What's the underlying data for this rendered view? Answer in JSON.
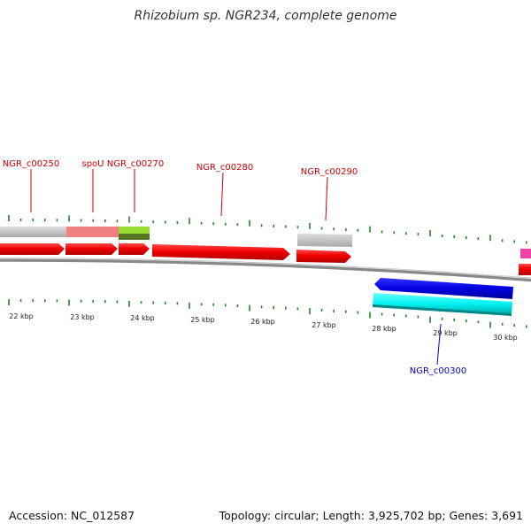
{
  "title": "Rhizobium sp. NGR234, complete genome",
  "accession": "Accession: NC_012587",
  "topology": "Topology: circular; Length: 3,925,702 bp; Genes: 3,691",
  "colors": {
    "label_red": "#cc0000",
    "label_blue": "#0000cc",
    "tick_green": "#228822",
    "cds_red": "#ff0000",
    "gene_grey": "#c8c8c8",
    "gene_pink": "#f08080",
    "gene_green": "#99dd33",
    "cds_blue": "#0000ee",
    "cds_cyan": "#00eeee",
    "gene_magenta": "#ee44aa"
  },
  "kbp_labels": [
    "22 kbp",
    "23 kbp",
    "24 kbp",
    "25 kbp",
    "26 kbp",
    "27 kbp",
    "28 kbp",
    "29 kbp",
    "30 kbp"
  ],
  "gene_labels": [
    "NGR_c00250",
    "spoU",
    "NGR_c00270",
    "NGR_c00280",
    "NGR_c00290",
    "NGR_c00300"
  ]
}
